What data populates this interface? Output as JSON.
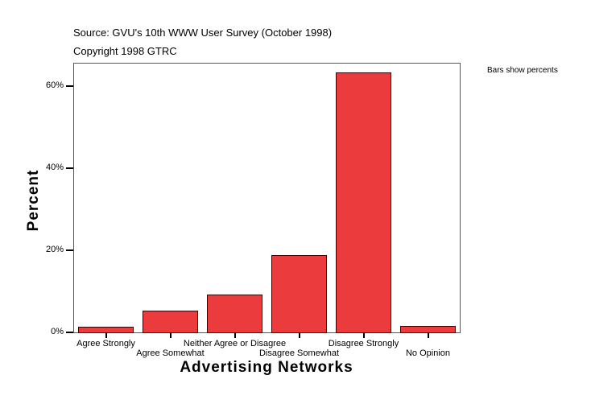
{
  "header": {
    "source": "Source: GVU's 10th WWW User Survey (October 1998)",
    "copyright": "Copyright 1998 GTRC"
  },
  "note": "Bars show percents",
  "colors": {
    "bar": "#ec3b3d",
    "bar_border": "#3a0000"
  },
  "chart_data": {
    "type": "bar",
    "title": "Source: GVU's 10th WWW User Survey (October 1998)",
    "subtitle": "Copyright 1998 GTRC",
    "xlabel": "Advertising Networks",
    "ylabel": "Percent",
    "categories": [
      "Agree Strongly",
      "Agree Somewhat",
      "Neither Agree or Disagree",
      "Disagree Somewhat",
      "Disagree Strongly",
      "No Opinion"
    ],
    "values": [
      1.4,
      5.3,
      9.2,
      18.8,
      63.3,
      1.6
    ],
    "yticks": [
      "0%",
      "20%",
      "40%",
      "60%"
    ],
    "ylim": [
      0,
      65.5
    ],
    "grid": false,
    "annotation": "Bars show percents",
    "legend": null
  }
}
